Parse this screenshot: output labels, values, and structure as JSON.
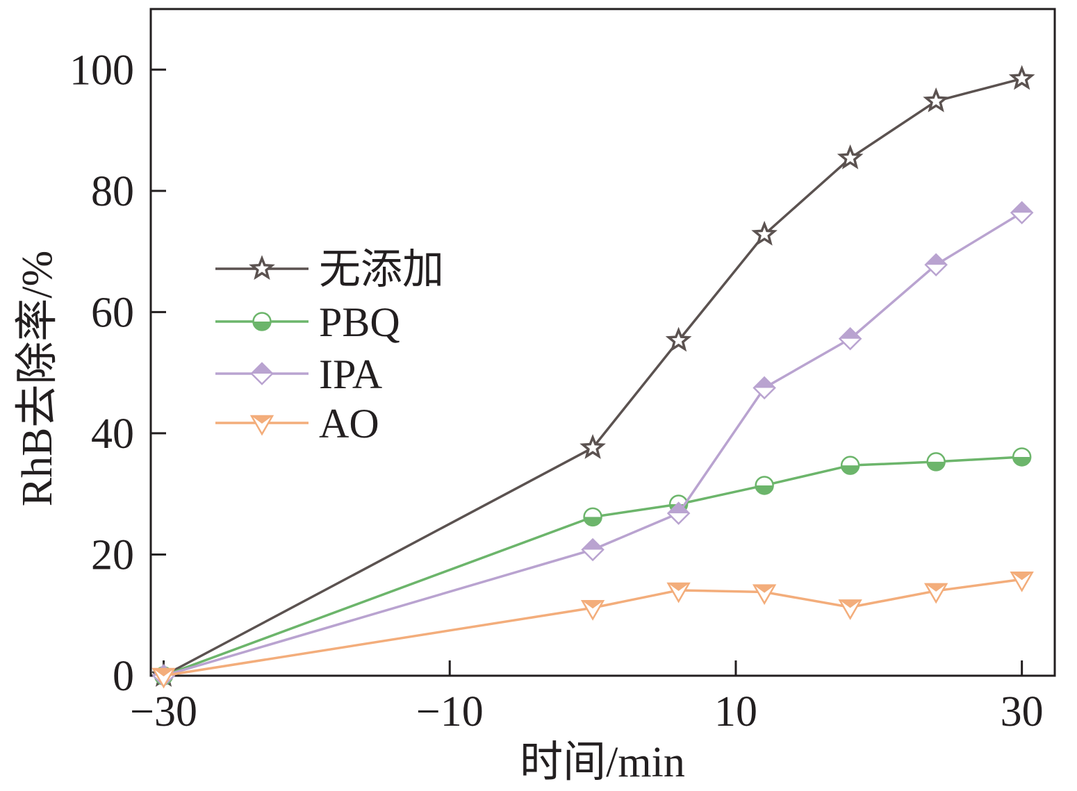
{
  "chart_data": {
    "type": "line",
    "xlabel": "时间/min",
    "ylabel": "RhB去除率/%",
    "xlim": [
      -30.9,
      32.3
    ],
    "ylim": [
      0,
      110
    ],
    "x_ticks": [
      -30,
      -10,
      10,
      30
    ],
    "x_tick_labels": [
      "−30",
      "−10",
      "10",
      "30"
    ],
    "y_ticks": [
      0,
      20,
      40,
      60,
      80,
      100
    ],
    "y_tick_labels": [
      "0",
      "20",
      "40",
      "60",
      "80",
      "100"
    ],
    "grid": false,
    "legend_position": "center-left",
    "series": [
      {
        "name": "无添加",
        "marker": "star",
        "color": "#5b5250",
        "x": [
          -30,
          0,
          6,
          12,
          18,
          24,
          30
        ],
        "y": [
          0,
          37.6,
          55.3,
          72.8,
          85.4,
          94.8,
          98.5
        ]
      },
      {
        "name": "PBQ",
        "marker": "circle",
        "color": "#6cb56b",
        "x": [
          -30,
          0,
          6,
          12,
          18,
          24,
          30
        ],
        "y": [
          0,
          26.2,
          28.3,
          31.4,
          34.7,
          35.3,
          36.1
        ]
      },
      {
        "name": "IPA",
        "marker": "diamond",
        "color": "#b9a3d0",
        "x": [
          -30,
          0,
          6,
          12,
          18,
          24,
          30
        ],
        "y": [
          0,
          20.8,
          26.8,
          47.5,
          55.6,
          67.8,
          76.4
        ]
      },
      {
        "name": "AO",
        "marker": "triangle-down",
        "color": "#f3ad7b",
        "x": [
          -30,
          0,
          6,
          12,
          18,
          24,
          30
        ],
        "y": [
          0,
          11.2,
          14.1,
          13.8,
          11.3,
          14.0,
          15.9
        ]
      }
    ]
  }
}
